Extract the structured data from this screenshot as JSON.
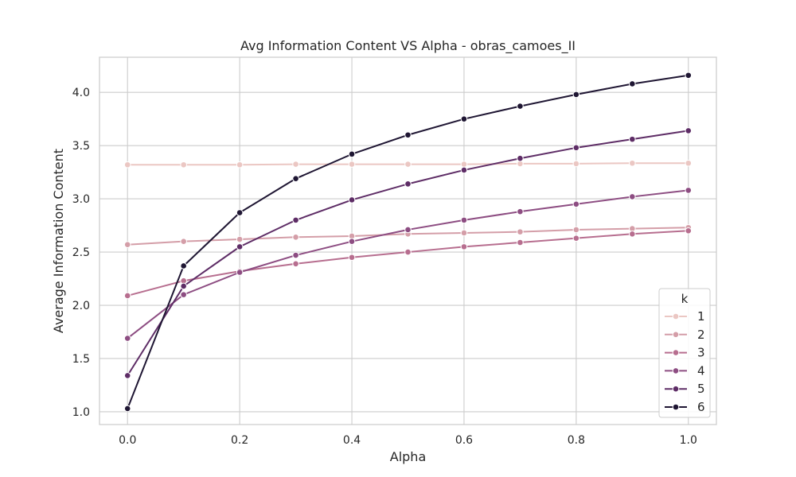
{
  "chart_data": {
    "type": "line",
    "title": "Avg Information Content VS Alpha - obras_camoes_II",
    "xlabel": "Alpha",
    "ylabel": "Average Information Content",
    "xlim": [
      -0.05,
      1.05
    ],
    "ylim": [
      0.88,
      4.33
    ],
    "xticks": [
      0.0,
      0.2,
      0.4,
      0.6,
      0.8,
      1.0
    ],
    "xtick_labels": [
      "0.0",
      "0.2",
      "0.4",
      "0.6",
      "0.8",
      "1.0"
    ],
    "yticks": [
      1.0,
      1.5,
      2.0,
      2.5,
      3.0,
      3.5,
      4.0
    ],
    "ytick_labels": [
      "1.0",
      "1.5",
      "2.0",
      "2.5",
      "3.0",
      "3.5",
      "4.0"
    ],
    "grid": true,
    "legend": {
      "title": "k",
      "placement": "lower-right"
    },
    "x": [
      0.0,
      0.1,
      0.2,
      0.3,
      0.4,
      0.5,
      0.6,
      0.7,
      0.8,
      0.9,
      1.0
    ],
    "series": [
      {
        "name": "1",
        "color": "#ebc7c3",
        "values": [
          3.32,
          3.32,
          3.32,
          3.325,
          3.325,
          3.325,
          3.325,
          3.33,
          3.33,
          3.335,
          3.335
        ]
      },
      {
        "name": "2",
        "color": "#d49ea8",
        "values": [
          2.57,
          2.6,
          2.62,
          2.64,
          2.65,
          2.67,
          2.68,
          2.69,
          2.71,
          2.72,
          2.73
        ]
      },
      {
        "name": "3",
        "color": "#b76e8f",
        "values": [
          2.09,
          2.23,
          2.32,
          2.39,
          2.45,
          2.5,
          2.55,
          2.59,
          2.63,
          2.67,
          2.7
        ]
      },
      {
        "name": "4",
        "color": "#8d4d82",
        "values": [
          1.69,
          2.1,
          2.31,
          2.47,
          2.6,
          2.71,
          2.8,
          2.88,
          2.95,
          3.02,
          3.08
        ]
      },
      {
        "name": "5",
        "color": "#5e2d66",
        "values": [
          1.34,
          2.18,
          2.55,
          2.8,
          2.99,
          3.14,
          3.27,
          3.38,
          3.48,
          3.56,
          3.64
        ]
      },
      {
        "name": "6",
        "color": "#1f1633",
        "values": [
          1.03,
          2.37,
          2.87,
          3.19,
          3.42,
          3.6,
          3.75,
          3.87,
          3.98,
          4.08,
          4.16
        ]
      }
    ]
  }
}
